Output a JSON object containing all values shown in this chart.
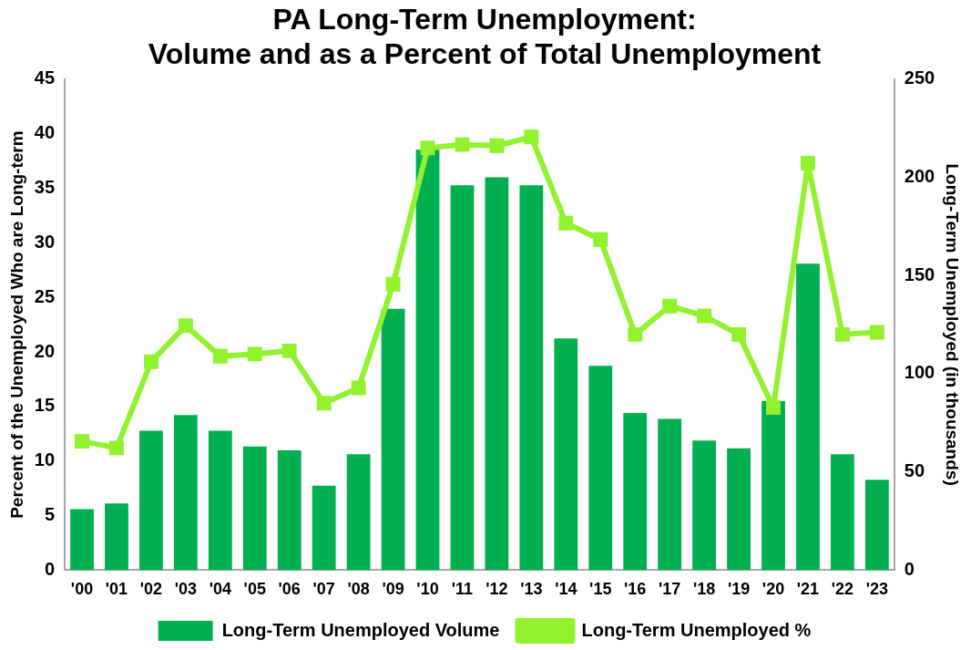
{
  "chart_data": {
    "type": "bar",
    "title": [
      "PA Long-Term Unemployment:",
      "Volume and as a Percent of Total Unemployment"
    ],
    "categories": [
      "'00",
      "'01",
      "'02",
      "'03",
      "'04",
      "'05",
      "'06",
      "'07",
      "'08",
      "'09",
      "'10",
      "'11",
      "'12",
      "'13",
      "'14",
      "'15",
      "'16",
      "'17",
      "'18",
      "'19",
      "'20",
      "'21",
      "'22",
      "'23"
    ],
    "series": [
      {
        "name": "Long-Term Unemployed Volume",
        "axis": "y2",
        "color": "#00b050",
        "values": [
          31,
          34,
          71,
          79,
          71,
          63,
          61,
          43,
          59,
          133,
          214,
          196,
          200,
          196,
          118,
          104,
          80,
          77,
          66,
          62,
          86,
          156,
          59,
          46
        ]
      },
      {
        "name": "Long-Term Unemployed %",
        "type": "line",
        "color": "#92f22e",
        "values": [
          11.8,
          11.2,
          19.1,
          22.4,
          19.6,
          19.8,
          20.1,
          15.3,
          16.7,
          26.2,
          38.7,
          39.0,
          38.9,
          39.7,
          31.8,
          30.3,
          21.6,
          24.2,
          23.3,
          21.6,
          14.9,
          37.3,
          21.6,
          21.8
        ]
      }
    ],
    "ylabel": "Percent of the Unemployed Who are Long-term",
    "y2label": "Long-Term Unemployed (in thousands)",
    "ylim": [
      0,
      45
    ],
    "yticks": [
      0,
      5,
      10,
      15,
      20,
      25,
      30,
      35,
      40,
      45
    ],
    "y2lim": [
      0,
      250
    ],
    "y2ticks": [
      0,
      50,
      100,
      150,
      200,
      250
    ],
    "grid": false,
    "legend": "bottom",
    "marker": "square",
    "line_style": "solid"
  }
}
